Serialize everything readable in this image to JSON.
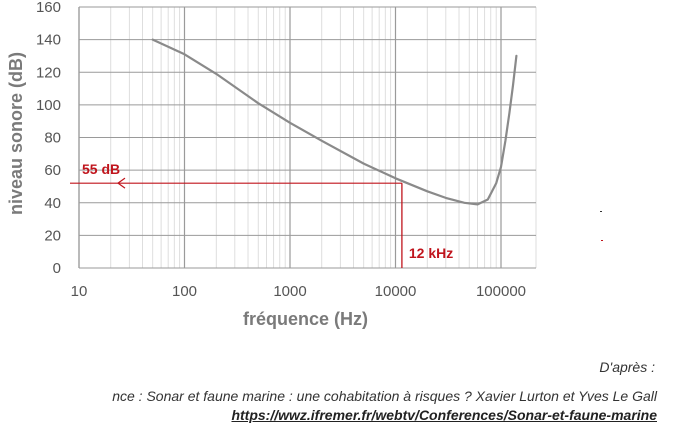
{
  "chart_data": {
    "type": "line",
    "title": "",
    "xlabel": "fréquence (Hz)",
    "ylabel": "niveau sonore (dB)",
    "xscale": "log",
    "xlim": [
      10,
      150000
    ],
    "ylim": [
      0,
      160
    ],
    "x_tick_labels": [
      "10",
      "100",
      "1000",
      "10000",
      "100000"
    ],
    "y_tick_labels": [
      "0",
      "20",
      "40",
      "60",
      "80",
      "100",
      "120",
      "140",
      "160"
    ],
    "grid": true,
    "legend": "none",
    "series": [
      {
        "color": "#8a8a8a",
        "points": [
          [
            50,
            140
          ],
          [
            100,
            131
          ],
          [
            200,
            119
          ],
          [
            500,
            101
          ],
          [
            1000,
            89
          ],
          [
            2000,
            78
          ],
          [
            5000,
            64
          ],
          [
            10000,
            55
          ],
          [
            20000,
            47
          ],
          [
            30000,
            43
          ],
          [
            45000,
            40
          ],
          [
            60000,
            39
          ],
          [
            75000,
            42
          ],
          [
            90000,
            52
          ],
          [
            100000,
            62
          ],
          [
            110000,
            78
          ],
          [
            120000,
            95
          ],
          [
            130000,
            112
          ],
          [
            140000,
            130
          ]
        ]
      }
    ],
    "annotations": [
      {
        "label": "55 dB",
        "x": 11500,
        "y": 52,
        "type": "horizontal-arrow-to-y-axis",
        "color": "#c0141c"
      },
      {
        "label": "12 kHz",
        "x": 11500,
        "y": 52,
        "type": "vertical-line-to-x-axis",
        "color": "#c0141c"
      }
    ]
  },
  "caption": {
    "after": "D'après :",
    "line": "nce : Sonar et faune marine : une cohabitation à risques ?  Xavier Lurton et Yves Le Gall",
    "url": "https://wwz.ifremer.fr/webtv/Conferences/Sonar-et-faune-marine"
  }
}
